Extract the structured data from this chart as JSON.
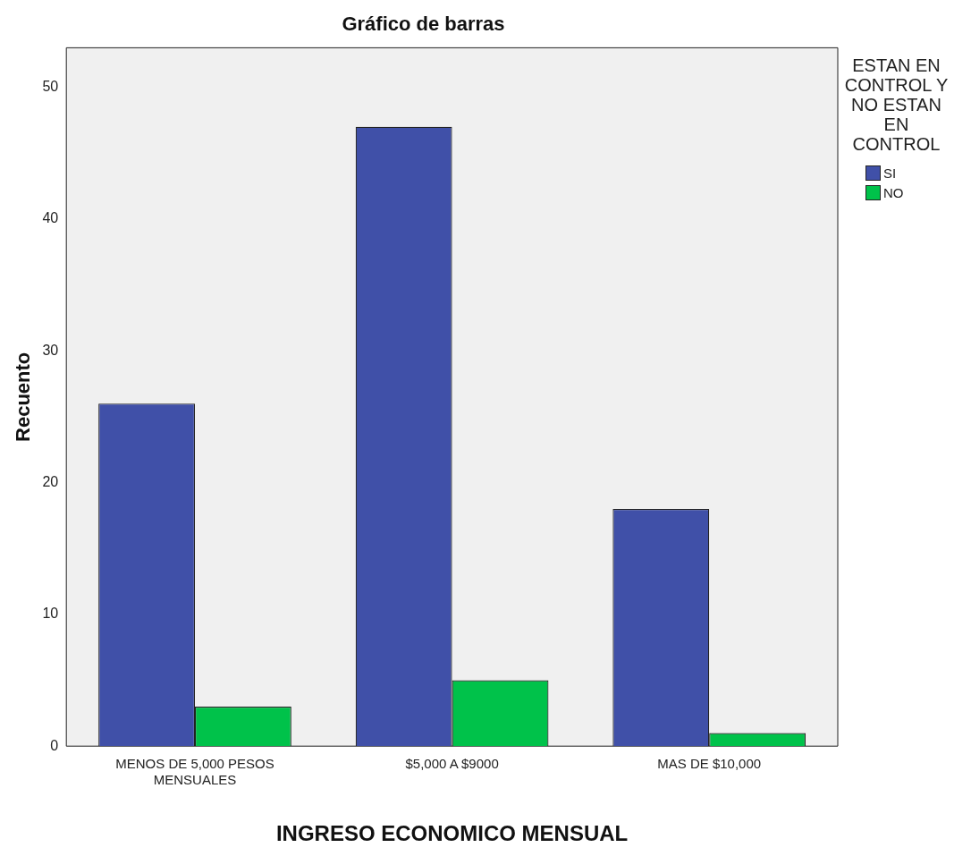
{
  "chart_data": {
    "type": "bar",
    "title": "Gráfico de barras",
    "xlabel": "INGRESO ECONOMICO MENSUAL",
    "ylabel": "Recuento",
    "legend_title": "ESTAN EN CONTROL Y NO ESTAN EN CONTROL",
    "categories": [
      "MENOS DE 5,000 PESOS MENSUALES",
      "$5,000 A $9000",
      "MAS DE $10,000"
    ],
    "series": [
      {
        "name": "SI",
        "color": "#4050a8",
        "values": [
          26,
          47,
          18
        ]
      },
      {
        "name": "NO",
        "color": "#00c24a",
        "values": [
          3,
          5,
          1
        ]
      }
    ],
    "ylim": [
      0,
      53
    ],
    "yticks": [
      0,
      10,
      20,
      30,
      40,
      50
    ],
    "grid": false,
    "legend": "top right"
  }
}
